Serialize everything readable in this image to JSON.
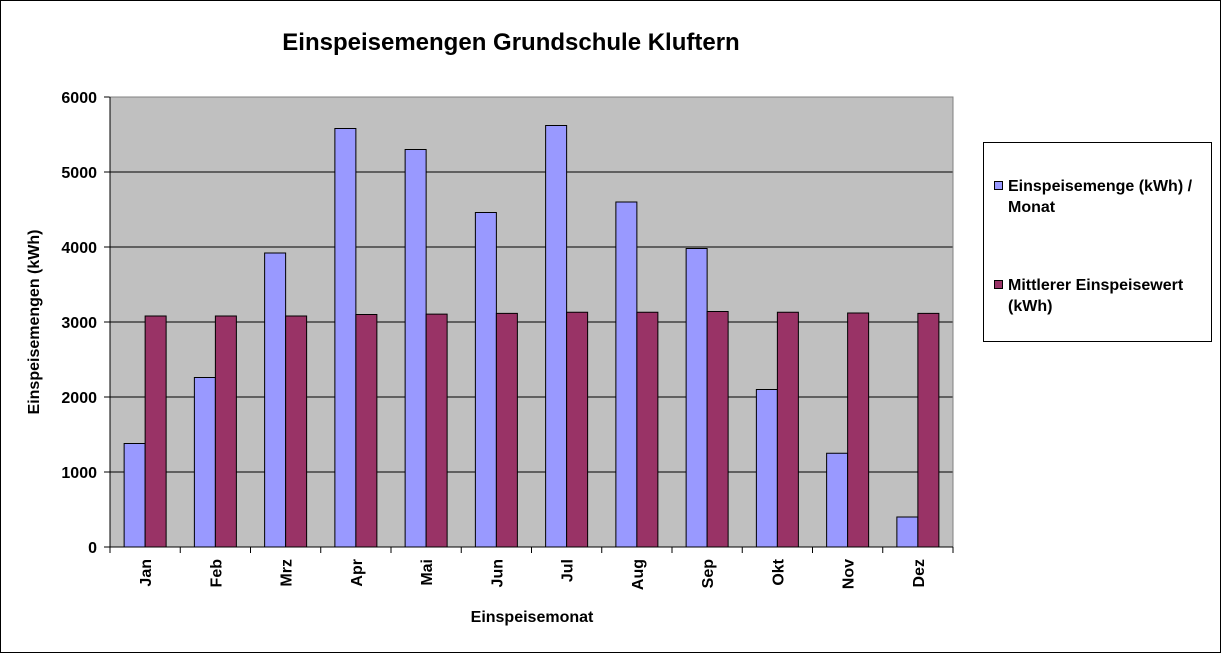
{
  "chart_data": {
    "type": "bar",
    "title": "Einspeisemengen Grundschule Kluftern",
    "xlabel": "Einspeisemonat",
    "ylabel": "Einspeisemengen (kWh)",
    "ylim": [
      0,
      6000
    ],
    "yticks": [
      0,
      1000,
      2000,
      3000,
      4000,
      5000,
      6000
    ],
    "grid": true,
    "legend_position": "right",
    "categories": [
      "Jan",
      "Feb",
      "Mrz",
      "Apr",
      "Mai",
      "Jun",
      "Jul",
      "Aug",
      "Sep",
      "Okt",
      "Nov",
      "Dez"
    ],
    "series": [
      {
        "name": "Einspeisemenge (kWh) / Monat",
        "color": "#9999ff",
        "values": [
          1380,
          2260,
          3920,
          5580,
          5300,
          4460,
          5620,
          4600,
          3980,
          2100,
          1250,
          400
        ]
      },
      {
        "name": "Mittlerer Einspeisewert (kWh)",
        "color": "#993366",
        "values": [
          3080,
          3080,
          3080,
          3100,
          3105,
          3115,
          3130,
          3130,
          3140,
          3130,
          3120,
          3115
        ]
      }
    ],
    "plot_background": "#c0c0c0"
  },
  "legend": {
    "items": [
      {
        "label": "Einspeisemenge (kWh) / Monat",
        "color": "#9999ff"
      },
      {
        "label": "Mittlerer Einspeisewert (kWh)",
        "color": "#993366"
      }
    ]
  }
}
